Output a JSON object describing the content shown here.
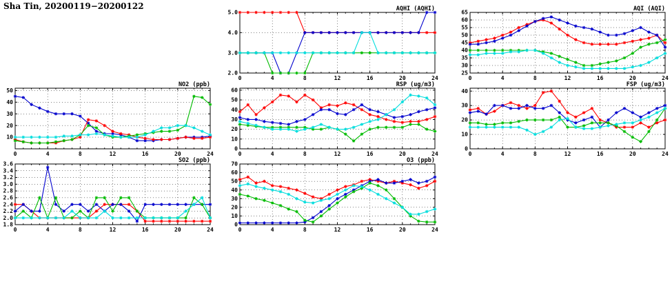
{
  "page_title": "Sha Tin, 20200119−20200122",
  "colors": {
    "red": "#ff0000",
    "blue": "#0000cd",
    "green": "#00bb00",
    "cyan": "#00dddd"
  },
  "x_axis": {
    "min": 0,
    "max": 24,
    "ticks": [
      0,
      4,
      8,
      12,
      16,
      20,
      24
    ]
  },
  "chart_data": [
    {
      "id": "aqhi",
      "type": "line",
      "title": "AQHI (AQHI)",
      "ylim": [
        2,
        5
      ],
      "yticks": [
        2,
        3,
        4,
        5
      ],
      "ydecimals": 1,
      "x": [
        0,
        1,
        2,
        3,
        4,
        5,
        6,
        7,
        8,
        9,
        10,
        11,
        12,
        13,
        14,
        15,
        16,
        17,
        18,
        19,
        20,
        21,
        22,
        23,
        24
      ],
      "series": [
        {
          "color": "red",
          "values": [
            5,
            5,
            5,
            5,
            5,
            5,
            5,
            5,
            4,
            4,
            4,
            4,
            4,
            4,
            4,
            4,
            4,
            4,
            4,
            4,
            4,
            4,
            4,
            4,
            4
          ]
        },
        {
          "color": "blue",
          "values": [
            3,
            3,
            3,
            3,
            3,
            2,
            2,
            3,
            4,
            4,
            4,
            4,
            4,
            4,
            4,
            4,
            4,
            4,
            4,
            4,
            4,
            4,
            4,
            5,
            5
          ]
        },
        {
          "color": "green",
          "values": [
            3,
            3,
            3,
            3,
            2,
            2,
            2,
            2,
            2,
            3,
            3,
            3,
            3,
            3,
            3,
            3,
            3,
            3,
            3,
            3,
            3,
            3,
            3,
            3,
            3
          ]
        },
        {
          "color": "cyan",
          "values": [
            3,
            3,
            3,
            3,
            3,
            3,
            3,
            3,
            3,
            3,
            3,
            3,
            3,
            3,
            3,
            4,
            4,
            3,
            3,
            3,
            3,
            3,
            3,
            3,
            3
          ]
        }
      ]
    },
    {
      "id": "aqi",
      "type": "line",
      "title": "AQI (AQI)",
      "ylim": [
        25,
        65
      ],
      "yticks": [
        25,
        30,
        35,
        40,
        45,
        50,
        55,
        60,
        65
      ],
      "ydecimals": 0,
      "x": [
        0,
        1,
        2,
        3,
        4,
        5,
        6,
        7,
        8,
        9,
        10,
        11,
        12,
        13,
        14,
        15,
        16,
        17,
        18,
        19,
        20,
        21,
        22,
        23,
        24
      ],
      "series": [
        {
          "color": "red",
          "values": [
            45,
            46,
            47,
            48,
            50,
            52,
            55,
            57,
            59,
            60,
            58,
            54,
            50,
            47,
            45,
            44,
            44,
            44,
            44,
            45,
            46,
            47,
            48,
            50,
            45
          ]
        },
        {
          "color": "blue",
          "values": [
            44,
            44,
            45,
            46,
            48,
            50,
            53,
            56,
            59,
            61,
            62,
            60,
            58,
            56,
            55,
            54,
            52,
            50,
            50,
            51,
            53,
            55,
            52,
            50,
            42
          ]
        },
        {
          "color": "green",
          "values": [
            40,
            40,
            40,
            40,
            40,
            40,
            40,
            40,
            40,
            39,
            38,
            36,
            34,
            32,
            30,
            30,
            31,
            32,
            33,
            35,
            38,
            42,
            44,
            45,
            47
          ]
        },
        {
          "color": "cyan",
          "values": [
            37,
            37,
            38,
            38,
            38,
            39,
            39,
            40,
            40,
            38,
            35,
            32,
            30,
            29,
            28,
            28,
            28,
            28,
            28,
            28,
            29,
            30,
            32,
            35,
            38
          ]
        }
      ]
    },
    {
      "id": "no2",
      "type": "line",
      "title": "NO2 (ppb)",
      "ylim": [
        0,
        52
      ],
      "yticks": [
        10,
        20,
        30,
        40,
        50
      ],
      "ydecimals": 0,
      "x": [
        0,
        1,
        2,
        3,
        4,
        5,
        6,
        7,
        8,
        9,
        10,
        11,
        12,
        13,
        14,
        15,
        16,
        17,
        18,
        19,
        20,
        21,
        22,
        23,
        24
      ],
      "series": [
        {
          "color": "blue",
          "values": [
            45,
            44,
            38,
            35,
            32,
            30,
            30,
            30,
            28,
            22,
            15,
            13,
            13,
            12,
            10,
            7,
            7,
            7,
            8,
            8,
            9,
            10,
            10,
            10,
            11
          ]
        },
        {
          "color": "red",
          "values": [
            8,
            6,
            5,
            5,
            5,
            5,
            7,
            8,
            10,
            25,
            24,
            20,
            15,
            13,
            12,
            10,
            9,
            8,
            8,
            8,
            9,
            10,
            9,
            9,
            10
          ]
        },
        {
          "color": "green",
          "values": [
            7,
            6,
            5,
            5,
            5,
            6,
            7,
            8,
            12,
            20,
            18,
            12,
            10,
            10,
            11,
            12,
            13,
            14,
            15,
            15,
            16,
            20,
            45,
            44,
            38
          ]
        },
        {
          "color": "cyan",
          "values": [
            10,
            10,
            10,
            10,
            10,
            10,
            11,
            11,
            12,
            12,
            13,
            12,
            11,
            10,
            10,
            10,
            12,
            15,
            18,
            18,
            20,
            20,
            18,
            15,
            12
          ]
        }
      ]
    },
    {
      "id": "rsp",
      "type": "line",
      "title": "RSP (ug/m3)",
      "ylim": [
        0,
        62
      ],
      "yticks": [
        0,
        10,
        20,
        30,
        40,
        50,
        60
      ],
      "ydecimals": 0,
      "x": [
        0,
        1,
        2,
        3,
        4,
        5,
        6,
        7,
        8,
        9,
        10,
        11,
        12,
        13,
        14,
        15,
        16,
        17,
        18,
        19,
        20,
        21,
        22,
        23,
        24
      ],
      "series": [
        {
          "color": "red",
          "values": [
            38,
            45,
            35,
            42,
            48,
            55,
            54,
            48,
            55,
            50,
            42,
            45,
            44,
            47,
            45,
            40,
            35,
            33,
            30,
            28,
            27,
            28,
            28,
            30,
            33
          ]
        },
        {
          "color": "blue",
          "values": [
            32,
            30,
            30,
            28,
            27,
            26,
            25,
            28,
            30,
            35,
            40,
            40,
            36,
            35,
            40,
            45,
            40,
            38,
            35,
            32,
            33,
            35,
            38,
            40,
            42
          ]
        },
        {
          "color": "green",
          "values": [
            25,
            24,
            23,
            22,
            22,
            22,
            22,
            22,
            22,
            20,
            20,
            22,
            20,
            15,
            8,
            15,
            20,
            22,
            22,
            22,
            22,
            25,
            25,
            20,
            18
          ]
        },
        {
          "color": "cyan",
          "values": [
            28,
            26,
            24,
            22,
            20,
            20,
            20,
            18,
            20,
            22,
            25,
            22,
            20,
            20,
            22,
            25,
            28,
            30,
            35,
            40,
            48,
            55,
            54,
            52,
            45
          ]
        }
      ]
    },
    {
      "id": "fsp",
      "type": "line",
      "title": "FSP (ug/m3)",
      "ylim": [
        0,
        42
      ],
      "yticks": [
        0,
        10,
        20,
        30,
        40
      ],
      "ydecimals": 0,
      "x": [
        0,
        1,
        2,
        3,
        4,
        5,
        6,
        7,
        8,
        9,
        10,
        11,
        12,
        13,
        14,
        15,
        16,
        17,
        18,
        19,
        20,
        21,
        22,
        23,
        24
      ],
      "series": [
        {
          "color": "red",
          "values": [
            27,
            28,
            24,
            26,
            30,
            32,
            30,
            28,
            30,
            39,
            40,
            33,
            25,
            22,
            25,
            28,
            20,
            18,
            15,
            15,
            15,
            18,
            15,
            18,
            20
          ]
        },
        {
          "color": "blue",
          "values": [
            25,
            26,
            24,
            30,
            30,
            28,
            28,
            30,
            28,
            28,
            30,
            25,
            20,
            18,
            20,
            22,
            15,
            20,
            25,
            28,
            25,
            22,
            25,
            28,
            30
          ]
        },
        {
          "color": "green",
          "values": [
            18,
            18,
            17,
            17,
            18,
            18,
            19,
            20,
            20,
            20,
            20,
            22,
            15,
            15,
            16,
            18,
            18,
            18,
            16,
            12,
            8,
            5,
            12,
            20,
            28
          ]
        },
        {
          "color": "cyan",
          "values": [
            15,
            15,
            15,
            15,
            15,
            15,
            15,
            13,
            10,
            12,
            15,
            20,
            21,
            15,
            14,
            14,
            15,
            16,
            17,
            18,
            18,
            20,
            22,
            25,
            28
          ]
        }
      ]
    },
    {
      "id": "so2",
      "type": "line",
      "title": "SO2 (ppb)",
      "ylim": [
        1.8,
        3.6
      ],
      "yticks": [
        1.8,
        2.0,
        2.2,
        2.4,
        2.6,
        2.8,
        3.0,
        3.2,
        3.4,
        3.6
      ],
      "ydecimals": 1,
      "x": [
        0,
        1,
        2,
        3,
        4,
        5,
        6,
        7,
        8,
        9,
        10,
        11,
        12,
        13,
        14,
        15,
        16,
        17,
        18,
        19,
        20,
        21,
        22,
        23,
        24
      ],
      "series": [
        {
          "color": "red",
          "values": [
            2.4,
            2.4,
            2.2,
            2.0,
            2.0,
            2.0,
            2.0,
            2.0,
            2.0,
            2.0,
            2.2,
            2.4,
            2.4,
            2.4,
            2.4,
            2.2,
            1.9,
            1.9,
            1.9,
            1.9,
            1.9,
            1.9,
            1.9,
            1.9,
            1.9
          ]
        },
        {
          "color": "blue",
          "values": [
            2.2,
            2.4,
            2.2,
            2.2,
            3.5,
            2.4,
            2.2,
            2.4,
            2.4,
            2.2,
            2.4,
            2.2,
            2.4,
            2.4,
            2.2,
            1.9,
            2.4,
            2.4,
            2.4,
            2.4,
            2.4,
            2.4,
            2.4,
            2.4,
            2.4
          ]
        },
        {
          "color": "green",
          "values": [
            2.0,
            2.2,
            2.0,
            2.6,
            2.0,
            2.6,
            2.0,
            2.0,
            2.2,
            2.0,
            2.6,
            2.6,
            2.2,
            2.6,
            2.6,
            2.2,
            2.0,
            2.0,
            2.0,
            2.0,
            2.0,
            2.0,
            2.6,
            2.4,
            2.0
          ]
        },
        {
          "color": "cyan",
          "values": [
            2.0,
            2.0,
            2.0,
            2.0,
            2.0,
            2.0,
            2.0,
            2.2,
            2.0,
            2.0,
            2.0,
            2.2,
            2.0,
            2.0,
            2.0,
            2.0,
            2.0,
            2.0,
            2.0,
            2.0,
            2.0,
            2.2,
            2.4,
            2.6,
            2.0
          ]
        }
      ]
    },
    {
      "id": "o3",
      "type": "line",
      "title": "O3 (ppb)",
      "ylim": [
        0,
        70
      ],
      "yticks": [
        0,
        10,
        20,
        30,
        40,
        50,
        60,
        70
      ],
      "ydecimals": 0,
      "x": [
        0,
        1,
        2,
        3,
        4,
        5,
        6,
        7,
        8,
        9,
        10,
        11,
        12,
        13,
        14,
        15,
        16,
        17,
        18,
        19,
        20,
        21,
        22,
        23,
        24
      ],
      "series": [
        {
          "color": "red",
          "values": [
            52,
            55,
            48,
            50,
            45,
            44,
            42,
            40,
            36,
            32,
            30,
            35,
            40,
            44,
            46,
            50,
            52,
            50,
            48,
            50,
            48,
            46,
            42,
            45,
            50
          ]
        },
        {
          "color": "blue",
          "values": [
            2,
            2,
            2,
            2,
            2,
            2,
            2,
            2,
            3,
            8,
            15,
            22,
            30,
            35,
            40,
            45,
            50,
            52,
            48,
            48,
            50,
            52,
            48,
            50,
            55
          ]
        },
        {
          "color": "green",
          "values": [
            35,
            33,
            30,
            28,
            25,
            22,
            18,
            15,
            5,
            3,
            10,
            18,
            25,
            32,
            38,
            42,
            48,
            45,
            40,
            30,
            20,
            10,
            4,
            3,
            3
          ]
        },
        {
          "color": "cyan",
          "values": [
            45,
            47,
            44,
            42,
            40,
            38,
            35,
            30,
            26,
            25,
            28,
            30,
            35,
            40,
            45,
            44,
            40,
            35,
            30,
            25,
            20,
            12,
            12,
            15,
            18
          ]
        }
      ]
    }
  ]
}
